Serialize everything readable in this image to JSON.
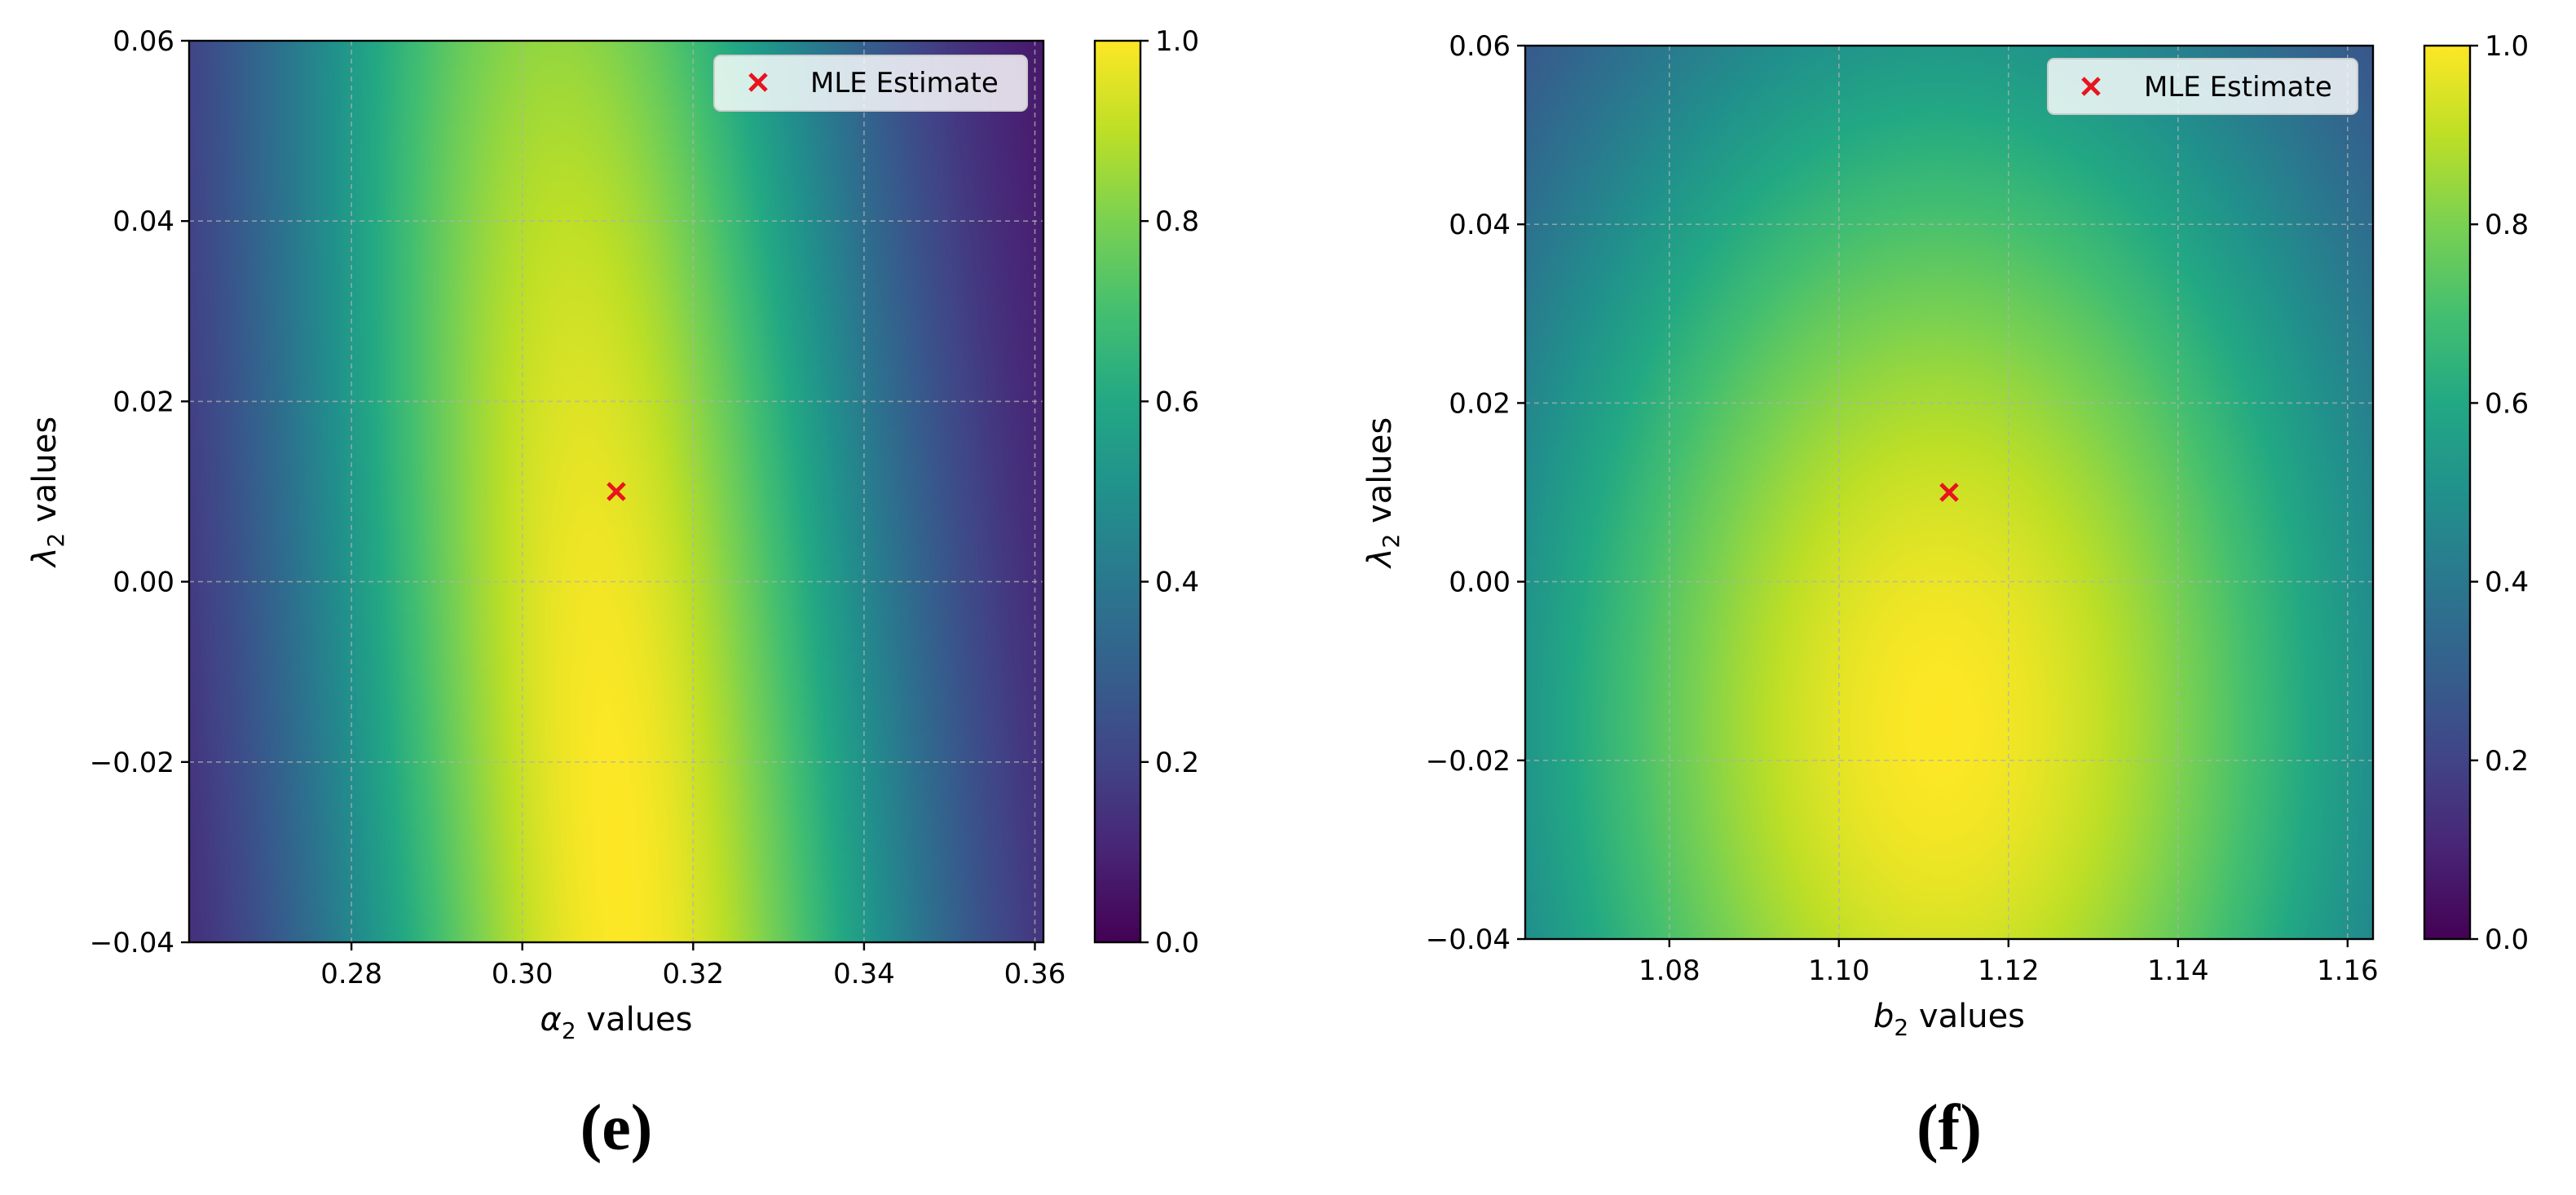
{
  "chart_data": [
    {
      "type": "heatmap",
      "panel_label": "(e)",
      "xlabel": {
        "symbol": "α",
        "subscript": "2",
        "suffix": " values"
      },
      "ylabel": {
        "symbol": "λ",
        "subscript": "2",
        "suffix": " values"
      },
      "xlim": [
        0.261,
        0.361
      ],
      "ylim": [
        -0.04,
        0.06
      ],
      "xticks": [
        0.28,
        0.3,
        0.32,
        0.34,
        0.36
      ],
      "xtick_labels": [
        "0.28",
        "0.30",
        "0.32",
        "0.34",
        "0.36"
      ],
      "yticks": [
        -0.04,
        -0.02,
        0.0,
        0.02,
        0.04,
        0.06
      ],
      "ytick_labels": [
        "−0.04",
        "−0.02",
        "0.00",
        "0.02",
        "0.04",
        "0.06"
      ],
      "grid": true,
      "colormap": "viridis",
      "colorbar": {
        "range": [
          0.0,
          1.0
        ],
        "ticks": [
          0.0,
          0.2,
          0.4,
          0.6,
          0.8,
          1.0
        ],
        "tick_labels": [
          "0.0",
          "0.2",
          "0.4",
          "0.6",
          "0.8",
          "1.0"
        ]
      },
      "surface": {
        "x_center": 0.311,
        "x_width": 0.036,
        "y_peak": -0.03,
        "y_decay": 0.05,
        "tilt": -0.08
      },
      "mle_estimate": {
        "x": 0.311,
        "y": 0.01,
        "color": "#e8141e"
      },
      "legend": {
        "label": "MLE Estimate",
        "position": "top-right"
      }
    },
    {
      "type": "heatmap",
      "panel_label": "(f)",
      "xlabel": {
        "symbol": "b",
        "subscript": "2",
        "suffix": " values"
      },
      "ylabel": {
        "symbol": "λ",
        "subscript": "2",
        "suffix": " values"
      },
      "xlim": [
        1.063,
        1.163
      ],
      "ylim": [
        -0.04,
        0.06
      ],
      "xticks": [
        1.08,
        1.1,
        1.12,
        1.14,
        1.16
      ],
      "xtick_labels": [
        "1.08",
        "1.10",
        "1.12",
        "1.14",
        "1.16"
      ],
      "yticks": [
        -0.04,
        -0.02,
        0.0,
        0.02,
        0.04,
        0.06
      ],
      "ytick_labels": [
        "−0.04",
        "−0.02",
        "0.00",
        "0.02",
        "0.04",
        "0.06"
      ],
      "grid": true,
      "colormap": "viridis",
      "colorbar": {
        "range": [
          0.0,
          1.0
        ],
        "ticks": [
          0.0,
          0.2,
          0.4,
          0.6,
          0.8,
          1.0
        ],
        "tick_labels": [
          "0.0",
          "0.2",
          "0.4",
          "0.6",
          "0.8",
          "1.0"
        ]
      },
      "surface": {
        "x_center": 1.112,
        "x_width": 0.043,
        "y_peak": -0.016,
        "y_width": 0.068
      },
      "mle_estimate": {
        "x": 1.113,
        "y": 0.01,
        "color": "#e8141e"
      },
      "legend": {
        "label": "MLE Estimate",
        "position": "top-right"
      }
    }
  ]
}
